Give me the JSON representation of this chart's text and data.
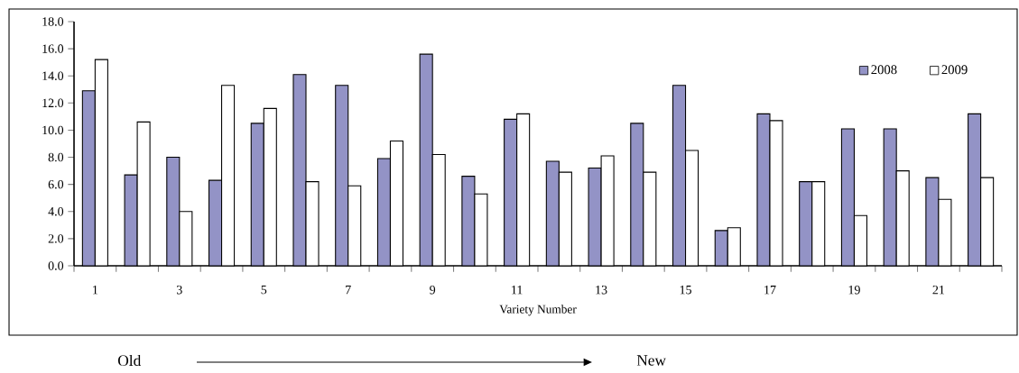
{
  "chart_data": {
    "type": "bar",
    "xlabel": "Variety Number",
    "categories": [
      "1",
      null,
      "3",
      null,
      "5",
      null,
      "7",
      null,
      "9",
      null,
      "11",
      null,
      "13",
      null,
      "15",
      null,
      "17",
      null,
      "19",
      null,
      "21",
      null
    ],
    "series": [
      {
        "name": "2008",
        "color": "#9393c6",
        "values": [
          12.9,
          6.7,
          8.0,
          6.3,
          10.5,
          14.1,
          13.3,
          7.9,
          15.6,
          6.6,
          10.8,
          7.7,
          7.2,
          10.5,
          13.3,
          2.6,
          11.2,
          6.2,
          10.1,
          10.1,
          6.5,
          11.2
        ]
      },
      {
        "name": "2009",
        "color": "#ffffff",
        "values": [
          15.2,
          10.6,
          4.0,
          13.3,
          11.6,
          6.2,
          5.9,
          9.2,
          8.2,
          5.3,
          11.2,
          6.9,
          8.1,
          6.9,
          8.5,
          2.8,
          10.7,
          6.2,
          3.7,
          7.0,
          4.9,
          6.5
        ]
      }
    ],
    "ylim": [
      0,
      18
    ],
    "yticks": [
      {
        "value": 0,
        "label": "0.0"
      },
      {
        "value": 2,
        "label": "2.0"
      },
      {
        "value": 4,
        "label": "4.0"
      },
      {
        "value": 6,
        "label": "6.0"
      },
      {
        "value": 8,
        "label": "8.0"
      },
      {
        "value": 10,
        "label": "10.0"
      },
      {
        "value": 12,
        "label": "12.0"
      },
      {
        "value": 14,
        "label": "14.0"
      },
      {
        "value": 16,
        "label": "16.0"
      },
      {
        "value": 18,
        "label": "18.0"
      }
    ],
    "legend": "top right",
    "annotations": [
      "Old",
      "New"
    ]
  }
}
